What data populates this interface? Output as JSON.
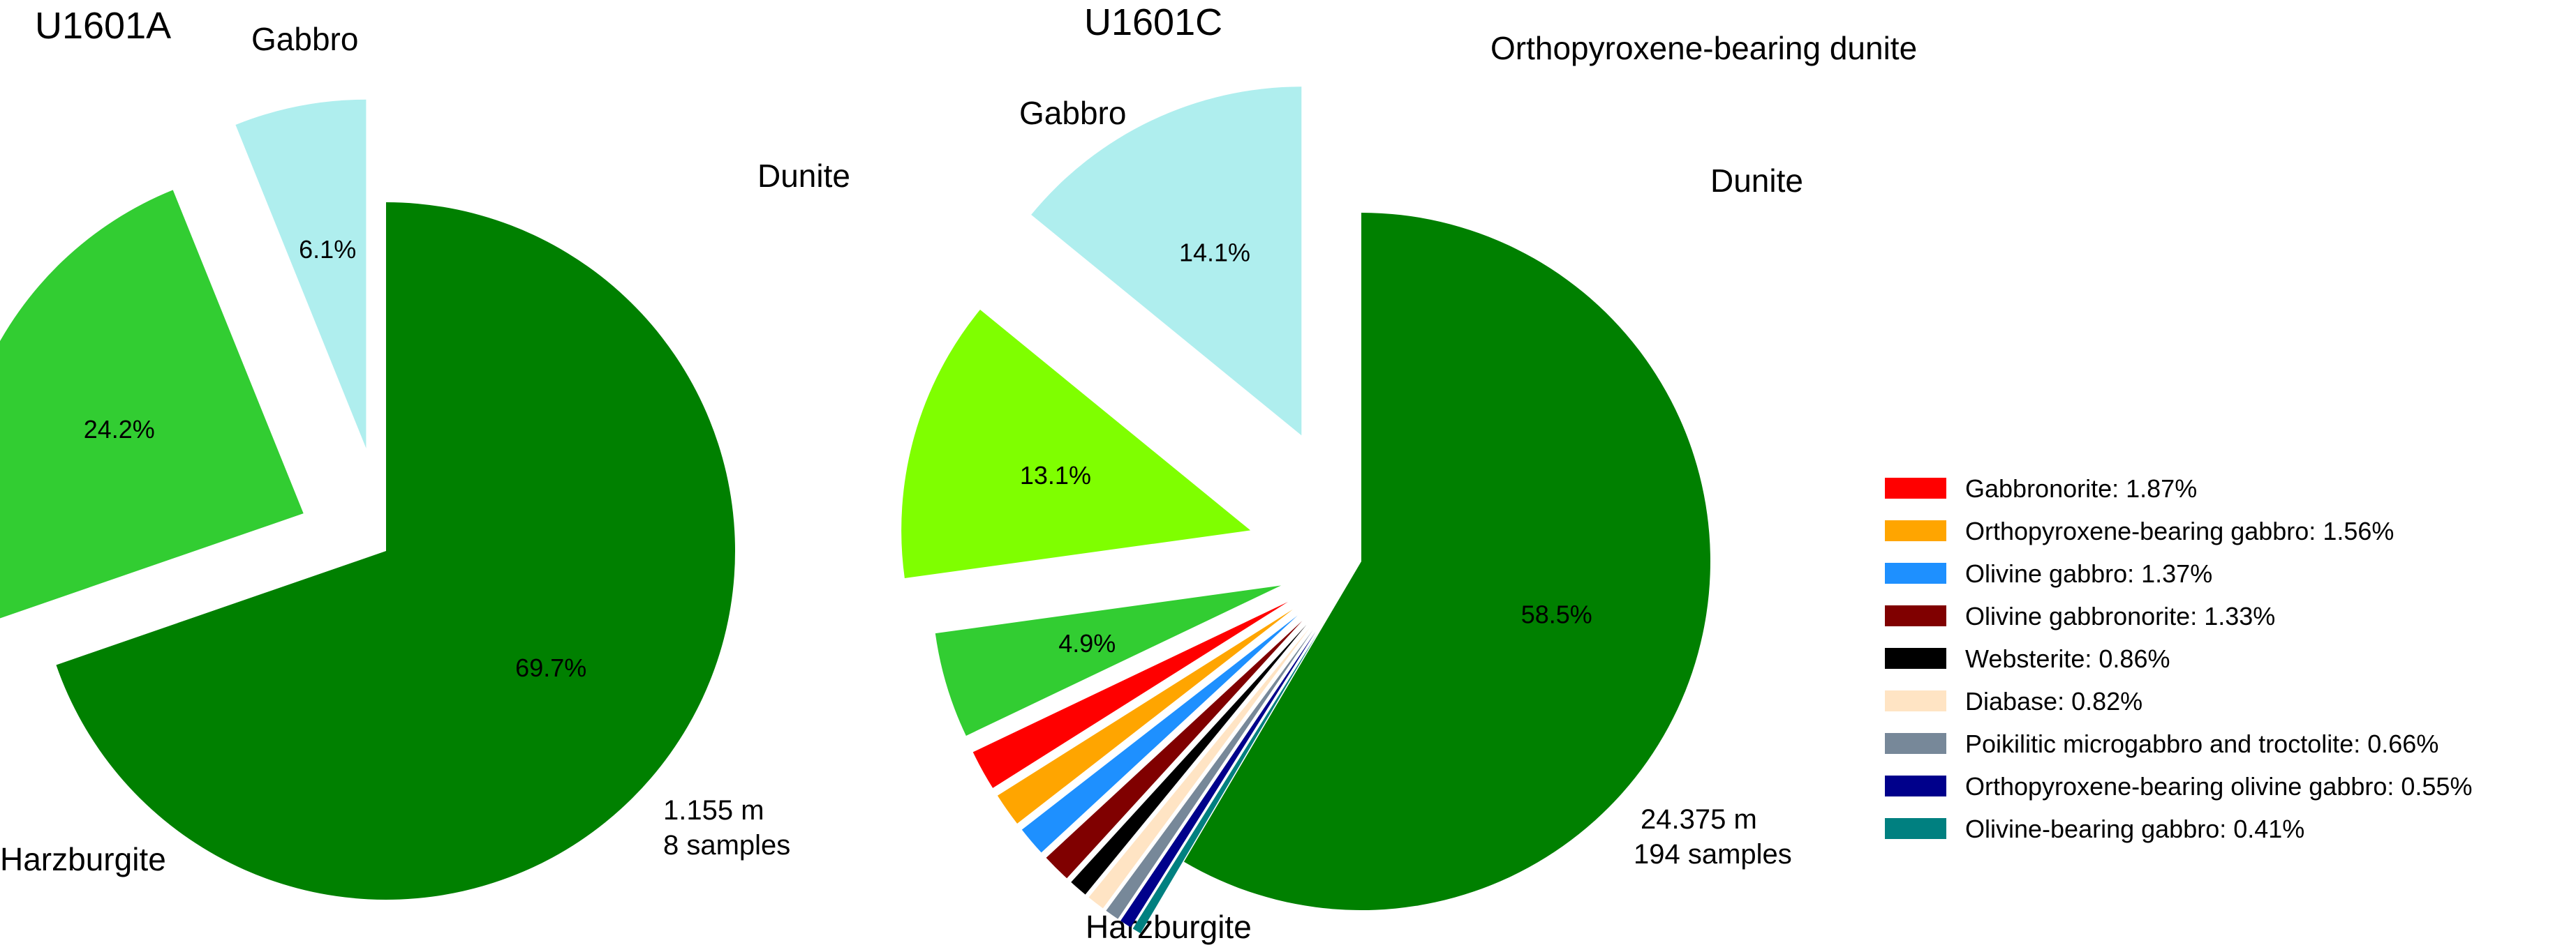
{
  "chart_data": [
    {
      "type": "pie",
      "title": "U1601A",
      "note_lines": [
        "1.155 m",
        "8 samples"
      ],
      "slices": [
        {
          "label": "Harzburgite",
          "value": 69.7,
          "pct_label": "69.7%",
          "color": "#008000"
        },
        {
          "label": "Dunite",
          "value": 24.2,
          "pct_label": "24.2%",
          "color": "#32CD32"
        },
        {
          "label": "Gabbro",
          "value": 6.1,
          "pct_label": "6.1%",
          "color": "#AFEEEE"
        }
      ]
    },
    {
      "type": "pie",
      "title": "U1601C",
      "note_lines": [
        "24.375 m",
        "194 samples"
      ],
      "slices": [
        {
          "label": "Harzburgite",
          "value": 58.5,
          "pct_label": "58.5%",
          "color": "#008000"
        },
        {
          "label": "Olivine-bearing gabbro: 0.41%",
          "value": 0.41,
          "color": "#008080"
        },
        {
          "label": "Orthopyroxene-bearing olivine gabbro: 0.55%",
          "value": 0.55,
          "color": "#00008B"
        },
        {
          "label": "Poikilitic microgabbro and troctolite: 0.66%",
          "value": 0.66,
          "color": "#778899"
        },
        {
          "label": "Diabase: 0.82%",
          "value": 0.82,
          "color": "#FFE4C4"
        },
        {
          "label": "Websterite: 0.86%",
          "value": 0.86,
          "color": "#000000"
        },
        {
          "label": "Olivine gabbronorite: 1.33%",
          "value": 1.33,
          "color": "#800000"
        },
        {
          "label": "Olivine gabbro: 1.37%",
          "value": 1.37,
          "color": "#1E90FF"
        },
        {
          "label": "Orthopyroxene-bearing gabbro: 1.56%",
          "value": 1.56,
          "color": "#FFA500"
        },
        {
          "label": "Gabbronorite: 1.87%",
          "value": 1.87,
          "color": "#FF0000"
        },
        {
          "label": "Dunite",
          "value": 4.9,
          "pct_label": "4.9%",
          "color": "#32CD32"
        },
        {
          "label": "Orthopyroxene-bearing dunite",
          "value": 13.1,
          "pct_label": "13.1%",
          "color": "#7FFF00"
        },
        {
          "label": "Gabbro",
          "value": 14.1,
          "pct_label": "14.1%",
          "color": "#AFEEEE"
        }
      ]
    }
  ],
  "legend": [
    {
      "label": "Gabbronorite: 1.87%",
      "color": "#FF0000"
    },
    {
      "label": "Orthopyroxene-bearing gabbro: 1.56%",
      "color": "#FFA500"
    },
    {
      "label": "Olivine gabbro: 1.37%",
      "color": "#1E90FF"
    },
    {
      "label": "Olivine gabbronorite: 1.33%",
      "color": "#800000"
    },
    {
      "label": "Websterite: 0.86%",
      "color": "#000000"
    },
    {
      "label": "Diabase: 0.82%",
      "color": "#FFE4C4"
    },
    {
      "label": "Poikilitic microgabbro and troctolite: 0.66%",
      "color": "#778899"
    },
    {
      "label": "Orthopyroxene-bearing olivine gabbro: 0.55%",
      "color": "#00008B"
    },
    {
      "label": "Olivine-bearing gabbro: 0.41%",
      "color": "#008080"
    }
  ]
}
